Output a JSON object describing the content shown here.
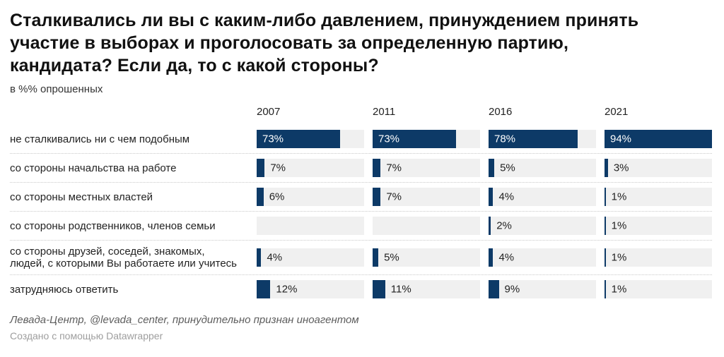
{
  "header": {
    "title": "Сталкивались ли вы с каким-либо давлением, принуждением принять\nучастие в выборах и проголосовать за определенную партию,\nкандидата? Если да, то с какой стороны?",
    "subtitle": "в %% опрошенных"
  },
  "chart_data": {
    "type": "bar",
    "title": "Сталкивались ли вы с каким-либо давлением, принуждением принять участие в выборах и проголосовать за определенную партию, кандидата? Если да, то с какой стороны?",
    "subtitle": "в %% опрошенных",
    "categories": [
      "не сталкивались ни с чем подобным",
      "со стороны начальства на работе",
      "со стороны местных властей",
      "со стороны родственников, членов семьи",
      "со стороны друзей, соседей, знакомых, людей, с которыми Вы работаете или учитесь",
      "затрудняюсь ответить"
    ],
    "series": [
      {
        "name": "2007",
        "values": [
          73,
          7,
          6,
          null,
          4,
          12
        ]
      },
      {
        "name": "2011",
        "values": [
          73,
          7,
          7,
          null,
          5,
          11
        ]
      },
      {
        "name": "2016",
        "values": [
          78,
          5,
          4,
          2,
          4,
          9
        ]
      },
      {
        "name": "2021",
        "values": [
          94,
          3,
          1,
          1,
          1,
          1
        ]
      }
    ],
    "value_suffix": "%",
    "scale_max": 94,
    "inside_label_threshold": 50,
    "bar_color": "#0d3a67",
    "track_color": "#f0f0f0",
    "legend_position": "columns-as-years",
    "grid": "dotted-row-separators"
  },
  "footer": {
    "source_note": "Левада-Центр, @levada_center, принудительно признан иноагентом",
    "credit": "Создано с помощью Datawrapper"
  }
}
